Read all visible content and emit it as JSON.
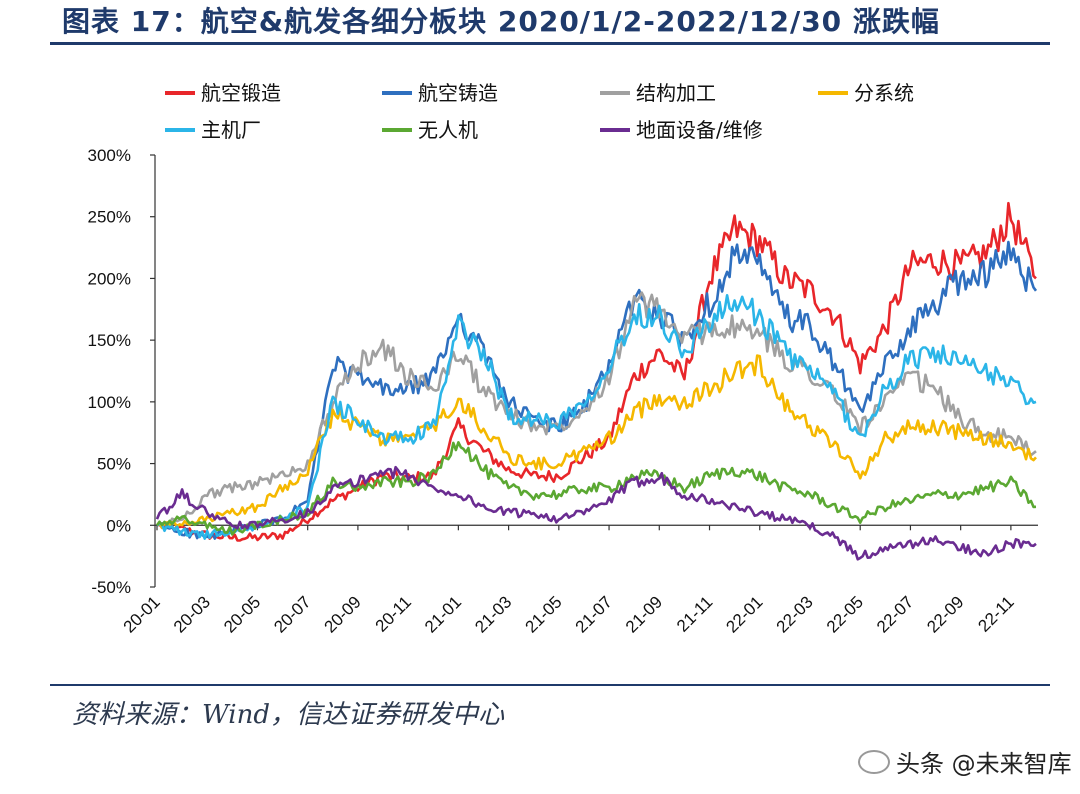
{
  "page": {
    "title": "图表 17：航空&航发各细分板块 2020/1/2-2022/12/30 涨跌幅",
    "source": "资料来源：Wind，信达证券研发中心",
    "watermark": "头条 @未来智库"
  },
  "chart_data": {
    "type": "line",
    "title": "航空&航发各细分板块 2020/1/2-2022/12/30 涨跌幅",
    "xlabel": "",
    "ylabel": "",
    "ylim": [
      -50,
      300
    ],
    "ytick_values": [
      -50,
      0,
      50,
      100,
      150,
      200,
      250,
      300
    ],
    "yticks": [
      "-50%",
      "0%",
      "50%",
      "100%",
      "150%",
      "200%",
      "250%",
      "300%"
    ],
    "xticks": [
      "20-01",
      "20-03",
      "20-05",
      "20-07",
      "20-09",
      "20-11",
      "21-01",
      "21-03",
      "21-05",
      "21-07",
      "21-09",
      "21-11",
      "22-01",
      "22-03",
      "22-05",
      "22-07",
      "22-09",
      "22-11"
    ],
    "x_months": [
      "20-01",
      "20-02",
      "20-03",
      "20-04",
      "20-05",
      "20-06",
      "20-07",
      "20-08",
      "20-09",
      "20-10",
      "20-11",
      "20-12",
      "21-01",
      "21-02",
      "21-03",
      "21-04",
      "21-05",
      "21-06",
      "21-07",
      "21-08",
      "21-09",
      "21-10",
      "21-11",
      "21-12",
      "22-01",
      "22-02",
      "22-03",
      "22-04",
      "22-05",
      "22-06",
      "22-07",
      "22-08",
      "22-09",
      "22-10",
      "22-11",
      "22-12"
    ],
    "legend_location": "top",
    "series": [
      {
        "name": "航空锻造",
        "color": "#e8262a",
        "values": [
          0,
          -3,
          -8,
          -10,
          -10,
          -8,
          5,
          20,
          30,
          40,
          38,
          40,
          80,
          60,
          45,
          40,
          40,
          55,
          70,
          120,
          140,
          120,
          200,
          240,
          230,
          200,
          190,
          170,
          130,
          160,
          210,
          215,
          210,
          220,
          250,
          200
        ]
      },
      {
        "name": "航空铸造",
        "color": "#2e6fbf",
        "values": [
          0,
          -5,
          -10,
          -5,
          0,
          5,
          20,
          130,
          120,
          110,
          110,
          120,
          170,
          140,
          100,
          85,
          80,
          95,
          130,
          185,
          170,
          150,
          180,
          220,
          210,
          170,
          160,
          130,
          90,
          130,
          160,
          180,
          200,
          205,
          220,
          190
        ]
      },
      {
        "name": "结构加工",
        "color": "#a0a0a0",
        "values": [
          0,
          5,
          25,
          30,
          35,
          40,
          50,
          100,
          130,
          145,
          120,
          110,
          140,
          110,
          90,
          80,
          80,
          95,
          120,
          180,
          175,
          150,
          160,
          160,
          155,
          135,
          125,
          105,
          80,
          100,
          120,
          110,
          85,
          75,
          70,
          60
        ]
      },
      {
        "name": "分系统",
        "color": "#f5b800",
        "values": [
          0,
          0,
          5,
          10,
          15,
          30,
          45,
          90,
          80,
          70,
          70,
          80,
          100,
          80,
          55,
          50,
          50,
          60,
          70,
          90,
          105,
          100,
          110,
          125,
          130,
          100,
          80,
          65,
          40,
          70,
          80,
          80,
          75,
          70,
          65,
          55
        ]
      },
      {
        "name": "主机厂",
        "color": "#2bb5e8",
        "values": [
          0,
          -5,
          -8,
          -5,
          0,
          5,
          15,
          100,
          85,
          70,
          70,
          80,
          160,
          140,
          90,
          85,
          85,
          100,
          130,
          170,
          170,
          140,
          165,
          180,
          170,
          140,
          125,
          105,
          70,
          110,
          135,
          140,
          130,
          125,
          115,
          100
        ]
      },
      {
        "name": "无人机",
        "color": "#5ba832",
        "values": [
          0,
          5,
          0,
          -5,
          0,
          5,
          10,
          35,
          30,
          35,
          35,
          40,
          70,
          45,
          30,
          25,
          25,
          30,
          30,
          40,
          40,
          30,
          40,
          45,
          40,
          30,
          25,
          15,
          5,
          15,
          20,
          25,
          25,
          30,
          35,
          15
        ]
      },
      {
        "name": "地面设备/维修",
        "color": "#6a2c91",
        "values": [
          5,
          25,
          10,
          0,
          0,
          5,
          10,
          30,
          35,
          45,
          40,
          30,
          25,
          15,
          10,
          10,
          5,
          10,
          20,
          35,
          40,
          25,
          20,
          15,
          10,
          5,
          0,
          -10,
          -25,
          -20,
          -15,
          -12,
          -18,
          -22,
          -15,
          -15
        ]
      }
    ]
  }
}
